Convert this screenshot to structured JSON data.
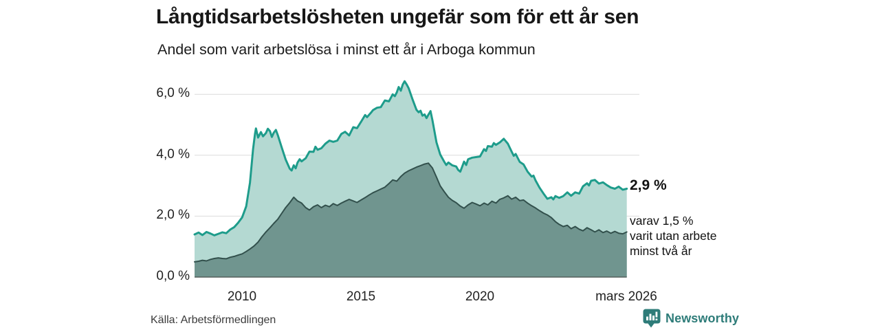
{
  "title": "Långtidsarbetslösheten ungefär som för ett år sen",
  "subtitle": "Andel som varit arbetslösa i minst ett år i Arboga kommun",
  "source": "Källa: Arbetsförmedlingen",
  "brand": {
    "name": "Newsworthy",
    "color": "#2e7c79"
  },
  "annotation": {
    "value_label": "2,9 %",
    "sub_line1": "varav 1,5 %",
    "sub_line2": "varit utan arbete",
    "sub_line3": "minst två år"
  },
  "chart_data": {
    "type": "area",
    "unit": "%",
    "x_range": [
      2008.0,
      2026.17
    ],
    "y_range": [
      0,
      6.6
    ],
    "grid": true,
    "y_ticks": [
      0,
      2,
      4,
      6
    ],
    "y_tick_labels": [
      "0,0 %",
      "2,0 %",
      "4,0 %",
      "6,0 %"
    ],
    "x_ticks": [
      2010,
      2015,
      2020,
      2026.17
    ],
    "x_tick_labels": [
      "2010",
      "2015",
      "2020",
      "mars 2026"
    ],
    "gridline_color": "#dcdcdc",
    "baseline_color": "#56605d",
    "series": [
      {
        "name": "Arbetslösa minst ett år",
        "line_color": "#1e9c8b",
        "fill_color": "#b4d9d2",
        "end_value": 2.9,
        "end_label": "2,9 %",
        "points": [
          [
            2008.0,
            1.4
          ],
          [
            2008.17,
            1.46
          ],
          [
            2008.33,
            1.38
          ],
          [
            2008.5,
            1.48
          ],
          [
            2008.67,
            1.43
          ],
          [
            2008.83,
            1.37
          ],
          [
            2009.0,
            1.42
          ],
          [
            2009.17,
            1.47
          ],
          [
            2009.33,
            1.44
          ],
          [
            2009.5,
            1.56
          ],
          [
            2009.67,
            1.64
          ],
          [
            2009.83,
            1.78
          ],
          [
            2010.0,
            1.96
          ],
          [
            2010.17,
            2.32
          ],
          [
            2010.33,
            3.1
          ],
          [
            2010.46,
            4.2
          ],
          [
            2010.54,
            4.7
          ],
          [
            2010.58,
            4.88
          ],
          [
            2010.67,
            4.58
          ],
          [
            2010.79,
            4.76
          ],
          [
            2010.88,
            4.62
          ],
          [
            2011.0,
            4.73
          ],
          [
            2011.08,
            4.87
          ],
          [
            2011.17,
            4.79
          ],
          [
            2011.25,
            4.6
          ],
          [
            2011.33,
            4.74
          ],
          [
            2011.42,
            4.83
          ],
          [
            2011.5,
            4.66
          ],
          [
            2011.67,
            4.24
          ],
          [
            2011.83,
            3.86
          ],
          [
            2012.0,
            3.56
          ],
          [
            2012.08,
            3.5
          ],
          [
            2012.17,
            3.67
          ],
          [
            2012.25,
            3.57
          ],
          [
            2012.33,
            3.76
          ],
          [
            2012.42,
            3.87
          ],
          [
            2012.5,
            3.8
          ],
          [
            2012.67,
            3.9
          ],
          [
            2012.83,
            4.12
          ],
          [
            2013.0,
            4.11
          ],
          [
            2013.08,
            4.28
          ],
          [
            2013.17,
            4.18
          ],
          [
            2013.33,
            4.23
          ],
          [
            2013.5,
            4.38
          ],
          [
            2013.67,
            4.48
          ],
          [
            2013.83,
            4.44
          ],
          [
            2014.0,
            4.48
          ],
          [
            2014.17,
            4.7
          ],
          [
            2014.33,
            4.77
          ],
          [
            2014.5,
            4.65
          ],
          [
            2014.67,
            4.92
          ],
          [
            2014.83,
            4.89
          ],
          [
            2015.0,
            5.1
          ],
          [
            2015.17,
            5.32
          ],
          [
            2015.25,
            5.25
          ],
          [
            2015.42,
            5.4
          ],
          [
            2015.5,
            5.48
          ],
          [
            2015.67,
            5.56
          ],
          [
            2015.83,
            5.58
          ],
          [
            2016.0,
            5.8
          ],
          [
            2016.17,
            5.77
          ],
          [
            2016.33,
            6.0
          ],
          [
            2016.42,
            5.94
          ],
          [
            2016.5,
            6.06
          ],
          [
            2016.58,
            6.24
          ],
          [
            2016.67,
            6.12
          ],
          [
            2016.75,
            6.32
          ],
          [
            2016.83,
            6.43
          ],
          [
            2016.92,
            6.32
          ],
          [
            2017.0,
            6.2
          ],
          [
            2017.17,
            5.82
          ],
          [
            2017.33,
            5.49
          ],
          [
            2017.42,
            5.41
          ],
          [
            2017.5,
            5.46
          ],
          [
            2017.58,
            5.3
          ],
          [
            2017.67,
            5.34
          ],
          [
            2017.75,
            5.22
          ],
          [
            2017.83,
            5.33
          ],
          [
            2017.92,
            5.45
          ],
          [
            2018.0,
            5.15
          ],
          [
            2018.17,
            4.42
          ],
          [
            2018.33,
            4.02
          ],
          [
            2018.5,
            3.78
          ],
          [
            2018.58,
            3.68
          ],
          [
            2018.67,
            3.76
          ],
          [
            2018.83,
            3.67
          ],
          [
            2019.0,
            3.63
          ],
          [
            2019.08,
            3.52
          ],
          [
            2019.17,
            3.46
          ],
          [
            2019.33,
            3.79
          ],
          [
            2019.42,
            3.68
          ],
          [
            2019.5,
            3.87
          ],
          [
            2019.67,
            3.92
          ],
          [
            2019.83,
            3.94
          ],
          [
            2020.0,
            3.96
          ],
          [
            2020.17,
            4.2
          ],
          [
            2020.25,
            4.14
          ],
          [
            2020.33,
            4.3
          ],
          [
            2020.5,
            4.28
          ],
          [
            2020.58,
            4.4
          ],
          [
            2020.67,
            4.34
          ],
          [
            2020.83,
            4.42
          ],
          [
            2021.0,
            4.54
          ],
          [
            2021.17,
            4.38
          ],
          [
            2021.33,
            4.12
          ],
          [
            2021.42,
            3.98
          ],
          [
            2021.5,
            4.04
          ],
          [
            2021.67,
            3.78
          ],
          [
            2021.83,
            3.7
          ],
          [
            2022.0,
            3.46
          ],
          [
            2022.17,
            3.3
          ],
          [
            2022.25,
            3.33
          ],
          [
            2022.33,
            3.18
          ],
          [
            2022.5,
            2.94
          ],
          [
            2022.67,
            2.74
          ],
          [
            2022.83,
            2.57
          ],
          [
            2023.0,
            2.62
          ],
          [
            2023.08,
            2.55
          ],
          [
            2023.17,
            2.66
          ],
          [
            2023.33,
            2.6
          ],
          [
            2023.5,
            2.66
          ],
          [
            2023.67,
            2.78
          ],
          [
            2023.83,
            2.67
          ],
          [
            2024.0,
            2.78
          ],
          [
            2024.17,
            2.74
          ],
          [
            2024.33,
            2.98
          ],
          [
            2024.5,
            3.08
          ],
          [
            2024.58,
            3.01
          ],
          [
            2024.67,
            3.16
          ],
          [
            2024.83,
            3.19
          ],
          [
            2025.0,
            3.07
          ],
          [
            2025.17,
            3.11
          ],
          [
            2025.33,
            3.02
          ],
          [
            2025.5,
            2.94
          ],
          [
            2025.67,
            2.9
          ],
          [
            2025.83,
            2.97
          ],
          [
            2026.0,
            2.87
          ],
          [
            2026.17,
            2.9
          ]
        ]
      },
      {
        "name": "Arbetslösa minst två år",
        "line_color": "#32504c",
        "fill_color": "#70958f",
        "end_value": 1.5,
        "end_label": "varav 1,5 % varit utan arbete minst två år",
        "points": [
          [
            2008.0,
            0.5
          ],
          [
            2008.17,
            0.52
          ],
          [
            2008.33,
            0.55
          ],
          [
            2008.5,
            0.53
          ],
          [
            2008.67,
            0.58
          ],
          [
            2008.83,
            0.61
          ],
          [
            2009.0,
            0.63
          ],
          [
            2009.17,
            0.61
          ],
          [
            2009.33,
            0.6
          ],
          [
            2009.5,
            0.65
          ],
          [
            2009.67,
            0.68
          ],
          [
            2009.83,
            0.72
          ],
          [
            2010.0,
            0.76
          ],
          [
            2010.17,
            0.84
          ],
          [
            2010.33,
            0.92
          ],
          [
            2010.5,
            1.02
          ],
          [
            2010.67,
            1.15
          ],
          [
            2010.83,
            1.32
          ],
          [
            2011.0,
            1.48
          ],
          [
            2011.17,
            1.62
          ],
          [
            2011.33,
            1.76
          ],
          [
            2011.5,
            1.9
          ],
          [
            2011.67,
            2.1
          ],
          [
            2011.83,
            2.28
          ],
          [
            2012.0,
            2.44
          ],
          [
            2012.17,
            2.62
          ],
          [
            2012.33,
            2.5
          ],
          [
            2012.5,
            2.43
          ],
          [
            2012.67,
            2.28
          ],
          [
            2012.83,
            2.2
          ],
          [
            2013.0,
            2.31
          ],
          [
            2013.17,
            2.37
          ],
          [
            2013.33,
            2.28
          ],
          [
            2013.5,
            2.36
          ],
          [
            2013.67,
            2.31
          ],
          [
            2013.83,
            2.41
          ],
          [
            2014.0,
            2.35
          ],
          [
            2014.17,
            2.43
          ],
          [
            2014.33,
            2.49
          ],
          [
            2014.5,
            2.55
          ],
          [
            2014.67,
            2.5
          ],
          [
            2014.83,
            2.45
          ],
          [
            2015.0,
            2.53
          ],
          [
            2015.17,
            2.61
          ],
          [
            2015.33,
            2.69
          ],
          [
            2015.5,
            2.77
          ],
          [
            2015.67,
            2.83
          ],
          [
            2015.83,
            2.89
          ],
          [
            2016.0,
            2.95
          ],
          [
            2016.17,
            3.07
          ],
          [
            2016.33,
            3.19
          ],
          [
            2016.5,
            3.15
          ],
          [
            2016.67,
            3.3
          ],
          [
            2016.83,
            3.41
          ],
          [
            2017.0,
            3.49
          ],
          [
            2017.17,
            3.55
          ],
          [
            2017.33,
            3.61
          ],
          [
            2017.5,
            3.66
          ],
          [
            2017.67,
            3.71
          ],
          [
            2017.83,
            3.74
          ],
          [
            2018.0,
            3.58
          ],
          [
            2018.17,
            3.28
          ],
          [
            2018.33,
            2.99
          ],
          [
            2018.5,
            2.8
          ],
          [
            2018.67,
            2.62
          ],
          [
            2018.83,
            2.52
          ],
          [
            2019.0,
            2.44
          ],
          [
            2019.17,
            2.33
          ],
          [
            2019.33,
            2.26
          ],
          [
            2019.5,
            2.37
          ],
          [
            2019.67,
            2.45
          ],
          [
            2019.83,
            2.4
          ],
          [
            2020.0,
            2.34
          ],
          [
            2020.17,
            2.43
          ],
          [
            2020.33,
            2.37
          ],
          [
            2020.5,
            2.49
          ],
          [
            2020.67,
            2.43
          ],
          [
            2020.83,
            2.55
          ],
          [
            2021.0,
            2.6
          ],
          [
            2021.17,
            2.67
          ],
          [
            2021.33,
            2.56
          ],
          [
            2021.5,
            2.62
          ],
          [
            2021.67,
            2.51
          ],
          [
            2021.83,
            2.53
          ],
          [
            2022.0,
            2.43
          ],
          [
            2022.17,
            2.34
          ],
          [
            2022.33,
            2.27
          ],
          [
            2022.5,
            2.18
          ],
          [
            2022.67,
            2.1
          ],
          [
            2022.83,
            2.04
          ],
          [
            2023.0,
            1.95
          ],
          [
            2023.17,
            1.82
          ],
          [
            2023.33,
            1.73
          ],
          [
            2023.5,
            1.66
          ],
          [
            2023.67,
            1.7
          ],
          [
            2023.83,
            1.59
          ],
          [
            2024.0,
            1.66
          ],
          [
            2024.17,
            1.57
          ],
          [
            2024.33,
            1.52
          ],
          [
            2024.5,
            1.62
          ],
          [
            2024.67,
            1.55
          ],
          [
            2024.83,
            1.48
          ],
          [
            2025.0,
            1.55
          ],
          [
            2025.17,
            1.46
          ],
          [
            2025.33,
            1.51
          ],
          [
            2025.5,
            1.44
          ],
          [
            2025.67,
            1.5
          ],
          [
            2025.83,
            1.44
          ],
          [
            2026.0,
            1.42
          ],
          [
            2026.17,
            1.48
          ]
        ]
      }
    ]
  }
}
